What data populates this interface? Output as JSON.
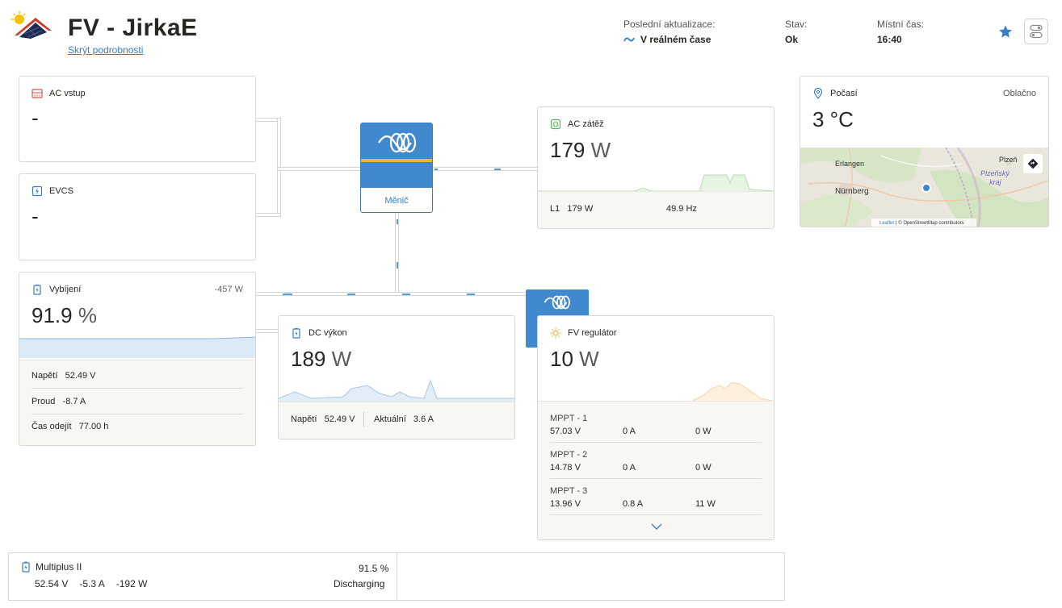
{
  "header": {
    "title": "FV - JirkaE",
    "hide_details": "Skrýt podrobnosti",
    "last_update_label": "Poslední aktualizace:",
    "last_update_value": "V reálném čase",
    "status_label": "Stav:",
    "status_value": "Ok",
    "local_time_label": "Místní čas:",
    "local_time_value": "16:40"
  },
  "ac_input": {
    "title": "AC vstup",
    "value": "-"
  },
  "evcs": {
    "title": "EVCS",
    "value": "-"
  },
  "battery": {
    "title": "Vybíjení",
    "power": "-457 W",
    "soc": "91.9",
    "soc_unit": "%",
    "soc_fraction": 0.919,
    "voltage_label": "Napětí",
    "voltage": "52.49 V",
    "current_label": "Proud",
    "current": "-8.7 A",
    "time_label": "Čas odejít",
    "time": "77.00 h"
  },
  "inverter": {
    "label": "Měnič"
  },
  "ac_load": {
    "title": "AC zátěž",
    "value": "179",
    "unit": "W",
    "phase_label": "L1",
    "phase_power": "179 W",
    "frequency": "49.9 Hz"
  },
  "dc_power": {
    "title": "DC výkon",
    "value": "189",
    "unit": "W",
    "voltage_label": "Napětí",
    "voltage": "52.49 V",
    "current_label": "Aktuální",
    "current": "3.6 A"
  },
  "pv_charger": {
    "title": "FV regulátor",
    "value": "10",
    "unit": "W",
    "mppts": [
      {
        "name": "MPPT - 1",
        "voltage": "57.03 V",
        "current": "0 A",
        "power": "0 W"
      },
      {
        "name": "MPPT - 2",
        "voltage": "14.78 V",
        "current": "0 A",
        "power": "0 W"
      },
      {
        "name": "MPPT - 3",
        "voltage": "13.96 V",
        "current": "0.8 A",
        "power": "11 W"
      }
    ]
  },
  "weather": {
    "title": "Počasí",
    "condition": "Oblačno",
    "temperature": "3 °C",
    "map_labels": {
      "erlangen": "Erlangen",
      "nurnberg": "Nürnberg",
      "plzen": "Plzeň",
      "plzensky": "Plzeňský",
      "kraj": "kraj"
    },
    "attribution_leaflet": "Leaflet",
    "attribution_text": "| © OpenStreetMap contributors"
  },
  "multiplus": {
    "name": "Multiplus II",
    "voltage": "52.54 V",
    "current": "-5.3 A",
    "power": "-192 W",
    "soc": "91.5 %",
    "state": "Discharging"
  },
  "colors": {
    "accent": "#387dc5",
    "victron_blue": "#4189cf",
    "stripe": "#f2b436"
  }
}
